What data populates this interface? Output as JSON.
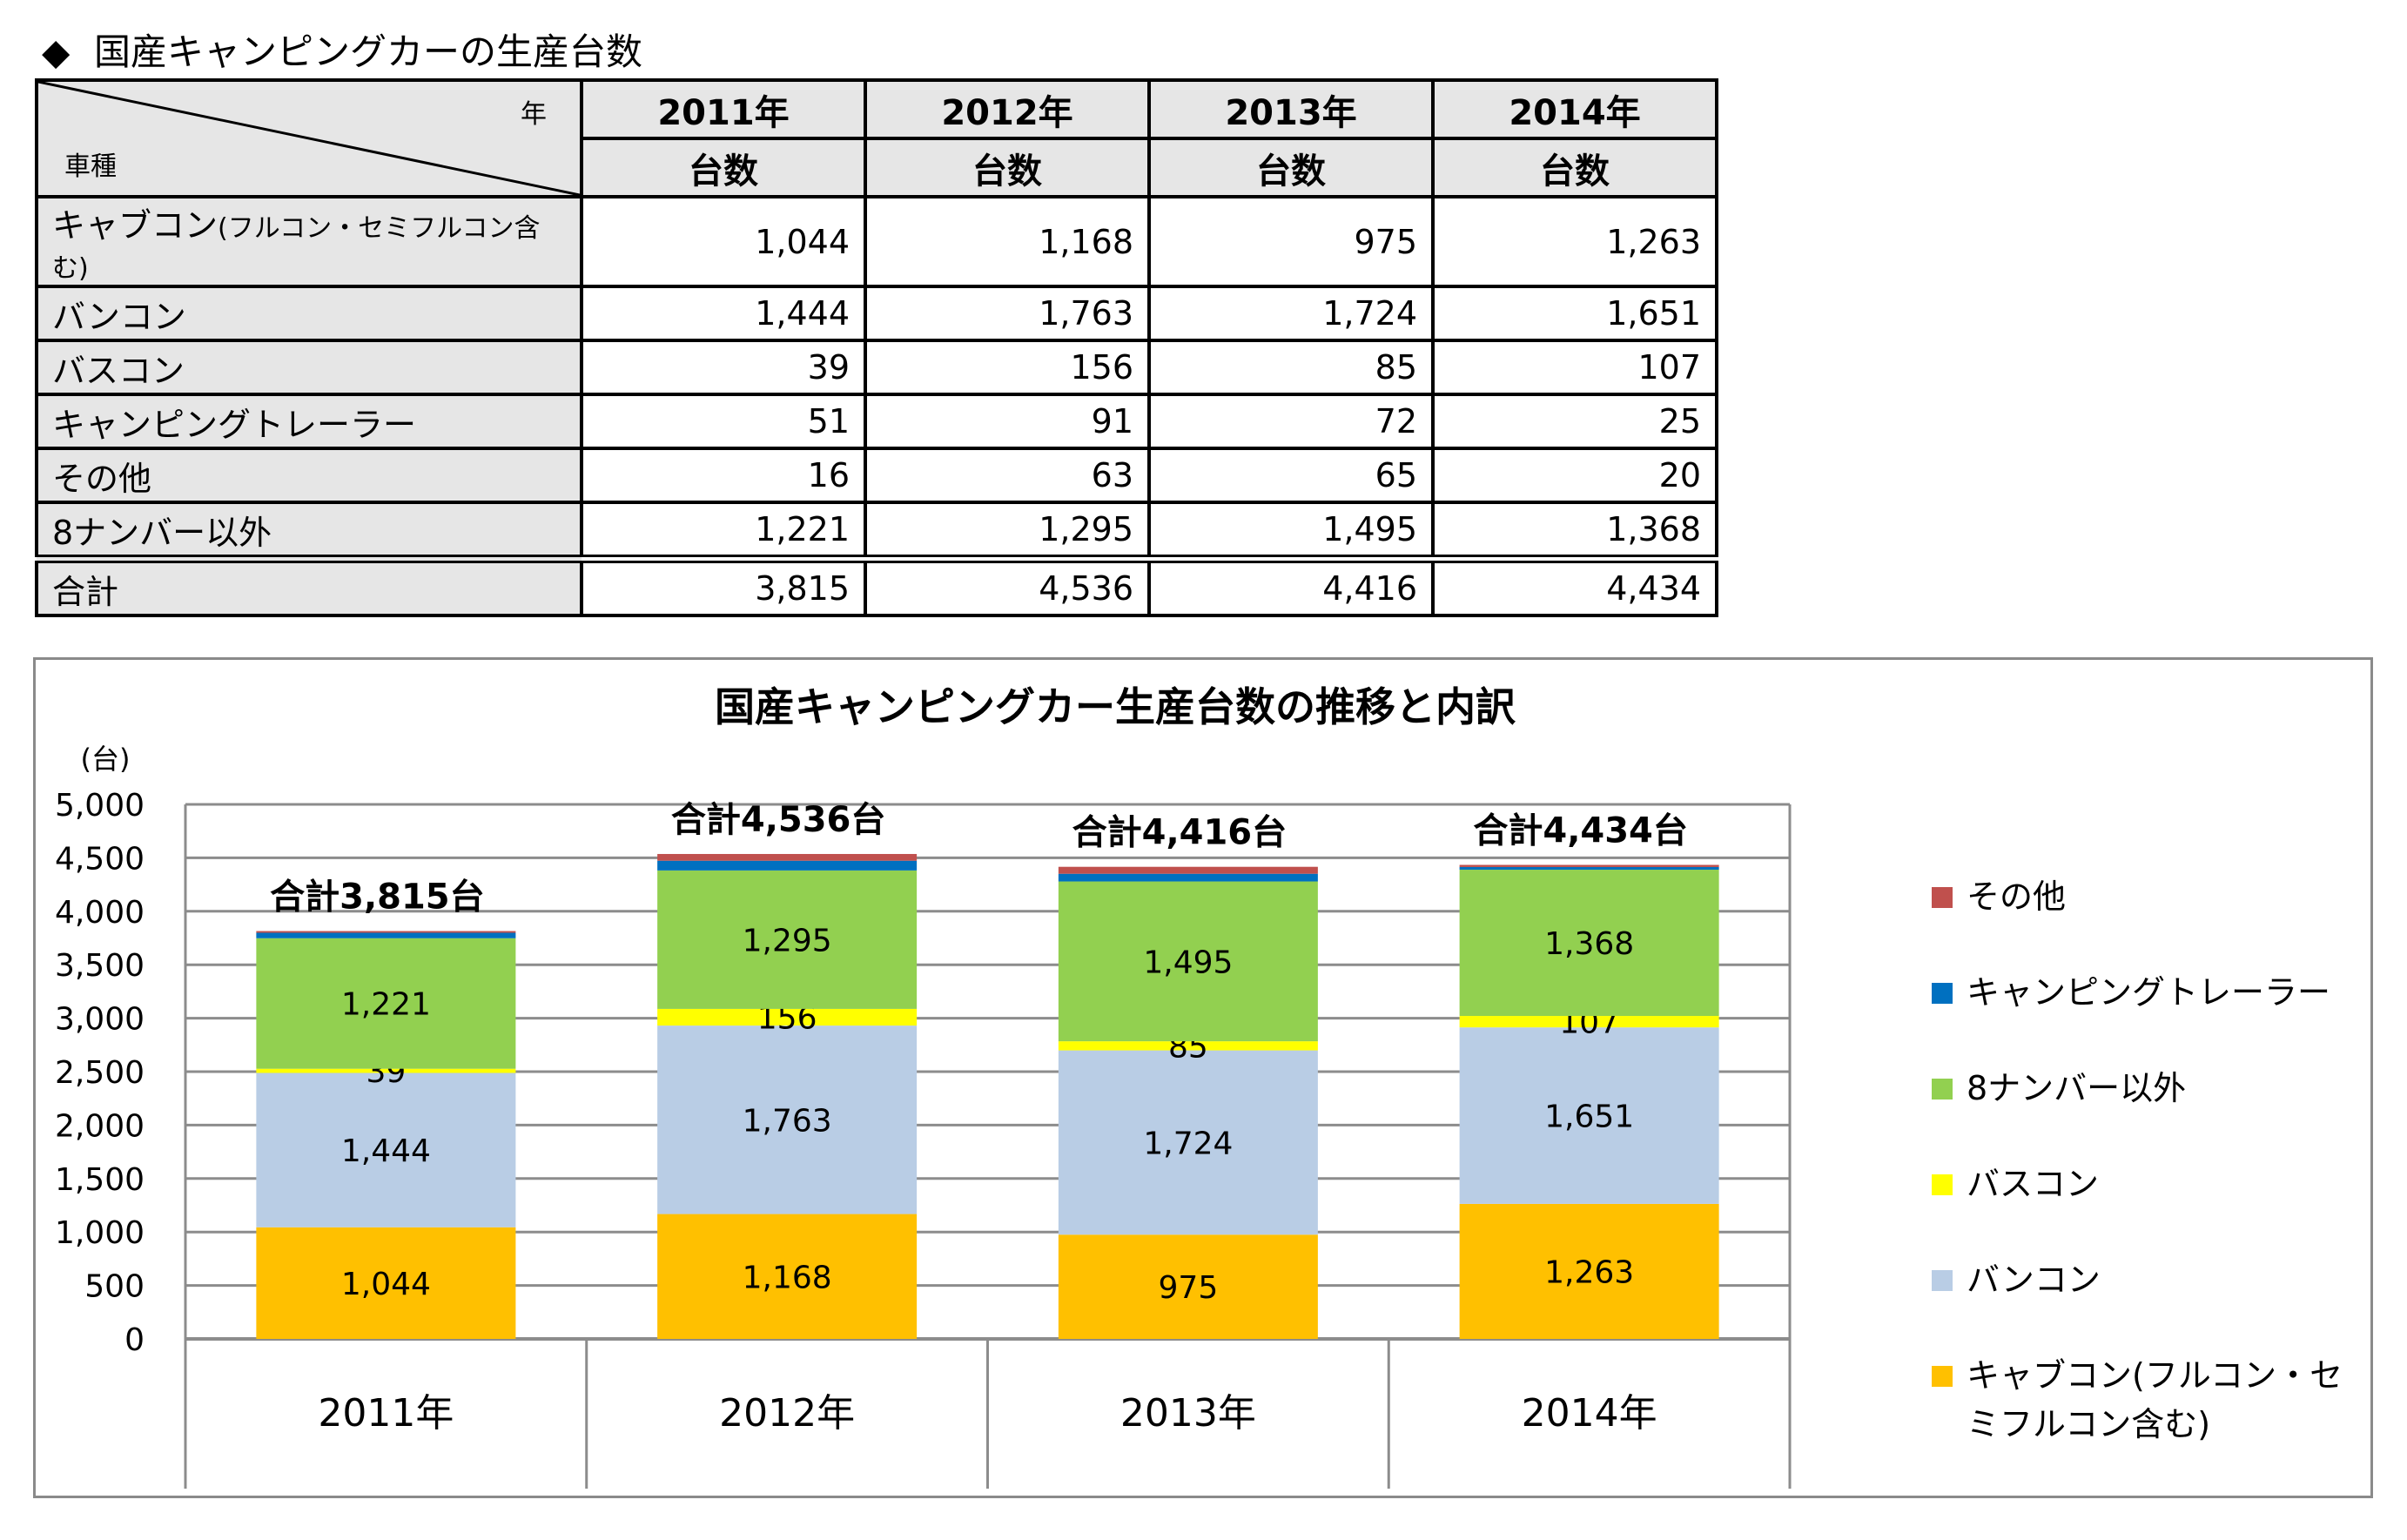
{
  "heading": {
    "bullet": "◆",
    "text": "国産キャンピングカーの生産台数"
  },
  "table": {
    "corner_year": "年",
    "corner_type": "車種",
    "years": [
      "2011年",
      "2012年",
      "2013年",
      "2014年"
    ],
    "subheader": "台数",
    "rows": [
      {
        "label": "キャブコン",
        "label_small": "(フルコン・セミフルコン含む)",
        "values": [
          "1,044",
          "1,168",
          "975",
          "1,263"
        ]
      },
      {
        "label": "バンコン",
        "label_small": "",
        "values": [
          "1,444",
          "1,763",
          "1,724",
          "1,651"
        ]
      },
      {
        "label": "バスコン",
        "label_small": "",
        "values": [
          "39",
          "156",
          "85",
          "107"
        ]
      },
      {
        "label": "キャンピングトレーラー",
        "label_small": "",
        "values": [
          "51",
          "91",
          "72",
          "25"
        ]
      },
      {
        "label": "その他",
        "label_small": "",
        "values": [
          "16",
          "63",
          "65",
          "20"
        ]
      },
      {
        "label": "8ナンバー以外",
        "label_small": "",
        "values": [
          "1,221",
          "1,295",
          "1,495",
          "1,368"
        ]
      }
    ],
    "total": {
      "label": "合計",
      "values": [
        "3,815",
        "4,536",
        "4,416",
        "4,434"
      ]
    }
  },
  "chart_data": {
    "type": "bar",
    "stacked": true,
    "title": "国産キャンピングカー生産台数の推移と内訳",
    "ylabel": "(台)",
    "xlabel": "",
    "categories": [
      "2011年",
      "2012年",
      "2013年",
      "2014年"
    ],
    "ylim": [
      0,
      5000
    ],
    "yticks": [
      0,
      500,
      1000,
      1500,
      2000,
      2500,
      3000,
      3500,
      4000,
      4500,
      5000
    ],
    "grid": true,
    "legend_position": "right",
    "totals_labels": [
      "合計3,815台",
      "合計4,536台",
      "合計4,416台",
      "合計4,434台"
    ],
    "series": [
      {
        "name": "キャブコン(フルコン・セミフルコン含む)",
        "legend_lines": [
          "キャブコン(フルコン・セ",
          "ミフルコン含む)"
        ],
        "color": "#ffc000",
        "values": [
          1044,
          1168,
          975,
          1263
        ],
        "labels": [
          "1,044",
          "1,168",
          "975",
          "1,263"
        ]
      },
      {
        "name": "バンコン",
        "legend_lines": [
          "バンコン"
        ],
        "color": "#b9cde5",
        "values": [
          1444,
          1763,
          1724,
          1651
        ],
        "labels": [
          "1,444",
          "1,763",
          "1,724",
          "1,651"
        ]
      },
      {
        "name": "バスコン",
        "legend_lines": [
          "バスコン"
        ],
        "color": "#ffff00",
        "values": [
          39,
          156,
          85,
          107
        ],
        "labels": [
          "39",
          "156",
          "85",
          "107"
        ]
      },
      {
        "name": "8ナンバー以外",
        "legend_lines": [
          "8ナンバー以外"
        ],
        "color": "#92d050",
        "values": [
          1221,
          1295,
          1495,
          1368
        ],
        "labels": [
          "1,221",
          "1,295",
          "1,495",
          "1,368"
        ]
      },
      {
        "name": "キャンピングトレーラー",
        "legend_lines": [
          "キャンピングトレーラー"
        ],
        "color": "#0070c0",
        "values": [
          51,
          91,
          72,
          25
        ],
        "labels": []
      },
      {
        "name": "その他",
        "legend_lines": [
          "その他"
        ],
        "color": "#c0504d",
        "values": [
          16,
          63,
          65,
          20
        ],
        "labels": []
      }
    ],
    "legend_order": [
      5,
      4,
      3,
      2,
      1,
      0
    ]
  }
}
